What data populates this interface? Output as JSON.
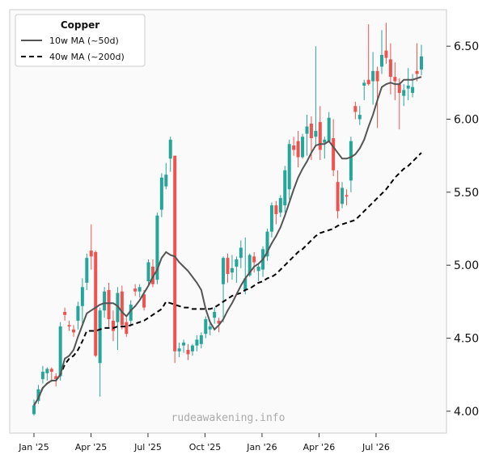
{
  "chart_data": {
    "type": "candlestick",
    "title": "",
    "xlabel": "",
    "ylabel": "",
    "ylim": [
      3.85,
      6.75
    ],
    "y_ticks": [
      4.0,
      4.5,
      5.0,
      5.5,
      6.0,
      6.5
    ],
    "y_tick_labels": [
      "4.00",
      "4.50",
      "5.00",
      "5.50",
      "6.00",
      "6.50"
    ],
    "x_tick_labels": [
      "Jan '25",
      "Apr '25",
      "Jul '25",
      "Oct '25",
      "Jan '26",
      "Apr '26",
      "Jul '26"
    ],
    "y_axis_side": "right",
    "grid": false,
    "legend": {
      "title": "Copper",
      "placement": "top-left",
      "entries": [
        "10w MA (~50d)",
        "40w MA (~200d)"
      ]
    },
    "watermark": "rudeawakening.info",
    "colors": {
      "up": "#26a69a",
      "down": "#ef5350",
      "ma10": "#555555",
      "ma40": "#000000",
      "background": "#fafafa",
      "frame": "#cccccc"
    },
    "candles": [
      [
        3.98,
        4.08,
        3.97,
        4.04
      ],
      [
        4.07,
        4.18,
        4.05,
        4.15
      ],
      [
        4.22,
        4.31,
        4.19,
        4.27
      ],
      [
        4.26,
        4.3,
        4.21,
        4.29
      ],
      [
        4.29,
        4.3,
        4.2,
        4.27
      ],
      [
        4.24,
        4.26,
        4.17,
        4.22
      ],
      [
        4.24,
        4.61,
        4.21,
        4.58
      ],
      [
        4.68,
        4.71,
        4.62,
        4.66
      ],
      [
        4.59,
        4.62,
        4.55,
        4.58
      ],
      [
        4.56,
        4.59,
        4.51,
        4.54
      ],
      [
        4.62,
        4.75,
        4.56,
        4.72
      ],
      [
        4.72,
        4.91,
        4.59,
        4.85
      ],
      [
        4.88,
        5.08,
        4.83,
        5.05
      ],
      [
        5.1,
        5.28,
        4.97,
        5.06
      ],
      [
        5.09,
        5.1,
        4.37,
        4.38
      ],
      [
        4.33,
        4.71,
        4.1,
        4.69
      ],
      [
        4.69,
        4.85,
        4.64,
        4.82
      ],
      [
        4.83,
        4.88,
        4.57,
        4.63
      ],
      [
        4.62,
        4.69,
        4.48,
        4.55
      ],
      [
        4.61,
        4.85,
        4.42,
        4.81
      ],
      [
        4.82,
        4.86,
        4.56,
        4.59
      ],
      [
        4.61,
        4.64,
        4.51,
        4.53
      ],
      [
        4.62,
        4.76,
        4.58,
        4.73
      ],
      [
        4.84,
        4.87,
        4.79,
        4.82
      ],
      [
        4.82,
        4.87,
        4.78,
        4.85
      ],
      [
        4.8,
        4.83,
        4.69,
        4.71
      ],
      [
        4.89,
        5.04,
        4.86,
        5.02
      ],
      [
        4.99,
        5.04,
        4.85,
        4.87
      ],
      [
        4.9,
        5.36,
        4.87,
        5.34
      ],
      [
        5.38,
        5.63,
        5.33,
        5.6
      ],
      [
        5.54,
        5.7,
        5.52,
        5.62
      ],
      [
        5.73,
        5.88,
        5.64,
        5.86
      ],
      [
        5.75,
        5.75,
        4.33,
        4.41
      ],
      [
        4.41,
        4.47,
        4.37,
        4.43
      ],
      [
        4.45,
        4.49,
        4.4,
        4.47
      ],
      [
        4.42,
        4.46,
        4.35,
        4.39
      ],
      [
        4.41,
        4.46,
        4.38,
        4.45
      ],
      [
        4.45,
        4.52,
        4.41,
        4.49
      ],
      [
        4.46,
        4.54,
        4.43,
        4.52
      ],
      [
        4.53,
        4.65,
        4.5,
        4.63
      ],
      [
        4.56,
        4.6,
        4.52,
        4.58
      ],
      [
        4.64,
        4.71,
        4.6,
        4.68
      ],
      [
        4.62,
        4.64,
        4.54,
        4.6
      ],
      [
        4.87,
        5.06,
        4.61,
        5.05
      ],
      [
        5.05,
        5.08,
        4.88,
        4.94
      ],
      [
        4.95,
        5.07,
        4.9,
        4.98
      ],
      [
        4.99,
        5.06,
        4.88,
        5.04
      ],
      [
        5.05,
        5.17,
        4.98,
        5.12
      ],
      [
        4.83,
        5.19,
        4.8,
        4.91
      ],
      [
        4.93,
        5.08,
        4.92,
        5.07
      ],
      [
        5.06,
        5.09,
        4.95,
        5.02
      ],
      [
        4.96,
        5.01,
        4.89,
        4.99
      ],
      [
        4.97,
        5.13,
        4.92,
        5.11
      ],
      [
        5.06,
        5.25,
        5.03,
        5.23
      ],
      [
        5.23,
        5.43,
        5.19,
        5.41
      ],
      [
        5.41,
        5.44,
        5.28,
        5.35
      ],
      [
        5.36,
        5.48,
        5.33,
        5.46
      ],
      [
        5.41,
        5.68,
        5.36,
        5.65
      ],
      [
        5.52,
        5.86,
        5.45,
        5.83
      ],
      [
        5.82,
        5.88,
        5.75,
        5.79
      ],
      [
        5.85,
        5.92,
        5.67,
        5.74
      ],
      [
        5.74,
        5.9,
        5.73,
        5.88
      ],
      [
        5.9,
        6.03,
        5.75,
        5.95
      ],
      [
        5.97,
        6.02,
        5.72,
        5.87
      ],
      [
        5.88,
        6.5,
        5.81,
        5.92
      ],
      [
        5.98,
        6.09,
        5.72,
        5.79
      ],
      [
        5.84,
        5.88,
        5.73,
        5.86
      ],
      [
        5.85,
        6.05,
        5.84,
        6.01
      ],
      [
        5.87,
        6.0,
        5.61,
        5.65
      ],
      [
        5.57,
        5.65,
        5.32,
        5.37
      ],
      [
        5.42,
        5.57,
        5.39,
        5.53
      ],
      [
        5.48,
        5.52,
        5.41,
        5.47
      ],
      [
        5.58,
        5.88,
        5.5,
        5.85
      ],
      [
        6.09,
        6.12,
        6.0,
        6.05
      ],
      [
        6.0,
        6.09,
        5.96,
        6.03
      ],
      [
        6.23,
        6.27,
        6.13,
        6.25
      ],
      [
        6.27,
        6.65,
        6.23,
        6.24
      ],
      [
        6.26,
        6.46,
        6.1,
        6.33
      ],
      [
        6.33,
        6.36,
        5.94,
        6.26
      ],
      [
        6.36,
        6.61,
        6.31,
        6.44
      ],
      [
        6.47,
        6.66,
        6.38,
        6.42
      ],
      [
        6.41,
        6.52,
        6.17,
        6.29
      ],
      [
        6.29,
        6.39,
        6.13,
        6.26
      ],
      [
        6.24,
        6.28,
        5.93,
        6.18
      ],
      [
        6.16,
        6.24,
        6.09,
        6.2
      ],
      [
        6.21,
        6.35,
        6.13,
        6.23
      ],
      [
        6.18,
        6.31,
        6.15,
        6.22
      ],
      [
        6.33,
        6.52,
        6.26,
        6.31
      ],
      [
        6.34,
        6.51,
        6.3,
        6.43
      ]
    ],
    "series": [
      {
        "name": "10w MA (~50d)",
        "x": [
          0,
          1,
          2,
          3,
          4,
          5,
          6,
          7,
          8,
          9,
          10,
          11,
          12,
          13,
          14,
          15,
          16,
          17,
          18,
          19,
          20,
          21,
          22,
          23,
          24,
          25,
          26,
          27,
          28,
          29,
          30,
          31,
          32,
          33,
          34,
          35,
          36,
          37,
          38,
          39,
          40,
          41,
          42,
          43,
          44,
          45,
          46,
          47,
          48,
          49,
          50,
          51,
          52,
          53,
          54,
          55,
          56,
          57,
          58,
          59,
          60,
          61,
          62,
          63,
          64,
          65,
          66,
          67,
          68,
          69,
          70,
          71,
          72,
          73,
          74,
          75,
          76,
          77,
          78,
          79,
          80,
          81,
          82,
          83,
          84,
          85,
          86,
          87,
          88
        ],
        "values": [
          4.04,
          4.09,
          4.16,
          4.19,
          4.21,
          4.21,
          4.25,
          4.36,
          4.38,
          4.42,
          4.51,
          4.59,
          4.67,
          4.69,
          4.71,
          4.73,
          4.74,
          4.74,
          4.74,
          4.72,
          4.68,
          4.65,
          4.69,
          4.72,
          4.76,
          4.81,
          4.86,
          4.92,
          4.97,
          5.05,
          5.09,
          5.07,
          5.06,
          5.02,
          4.99,
          4.96,
          4.92,
          4.88,
          4.83,
          4.7,
          4.61,
          4.56,
          4.59,
          4.63,
          4.69,
          4.74,
          4.8,
          4.86,
          4.91,
          4.95,
          4.99,
          5.01,
          5.04,
          5.09,
          5.15,
          5.2,
          5.26,
          5.34,
          5.43,
          5.52,
          5.6,
          5.66,
          5.71,
          5.77,
          5.82,
          5.83,
          5.83,
          5.85,
          5.81,
          5.77,
          5.73,
          5.73,
          5.74,
          5.76,
          5.8,
          5.86,
          5.95,
          6.03,
          6.13,
          6.22,
          6.24,
          6.25,
          6.24,
          6.24,
          6.27,
          6.27,
          6.27,
          6.28,
          6.29
        ]
      },
      {
        "name": "40w MA (~200d)",
        "x": [
          0,
          1,
          2,
          3,
          4,
          5,
          6,
          7,
          8,
          9,
          10,
          11,
          12,
          13,
          14,
          15,
          16,
          17,
          18,
          19,
          20,
          21,
          22,
          23,
          24,
          25,
          26,
          27,
          28,
          29,
          30,
          31,
          32,
          33,
          34,
          35,
          36,
          37,
          38,
          39,
          40,
          41,
          42,
          43,
          44,
          45,
          46,
          47,
          48,
          49,
          50,
          51,
          52,
          53,
          54,
          55,
          56,
          57,
          58,
          59,
          60,
          61,
          62,
          63,
          64,
          65,
          66,
          67,
          68,
          69,
          70,
          71,
          72,
          73,
          74,
          75,
          76,
          77,
          78,
          79,
          80,
          81,
          82,
          83,
          84,
          85,
          86,
          87,
          88
        ],
        "values": [
          4.04,
          4.09,
          4.16,
          4.19,
          4.21,
          4.21,
          4.25,
          4.32,
          4.36,
          4.38,
          4.42,
          4.48,
          4.55,
          4.55,
          4.55,
          4.56,
          4.57,
          4.57,
          4.57,
          4.58,
          4.58,
          4.58,
          4.59,
          4.6,
          4.61,
          4.62,
          4.64,
          4.66,
          4.68,
          4.7,
          4.75,
          4.74,
          4.73,
          4.72,
          4.71,
          4.71,
          4.7,
          4.7,
          4.7,
          4.7,
          4.7,
          4.71,
          4.73,
          4.75,
          4.77,
          4.79,
          4.8,
          4.81,
          4.83,
          4.84,
          4.86,
          4.88,
          4.89,
          4.91,
          4.92,
          4.94,
          4.97,
          5.0,
          5.03,
          5.06,
          5.09,
          5.11,
          5.14,
          5.17,
          5.2,
          5.22,
          5.23,
          5.24,
          5.25,
          5.27,
          5.28,
          5.29,
          5.3,
          5.31,
          5.34,
          5.37,
          5.4,
          5.43,
          5.46,
          5.49,
          5.52,
          5.56,
          5.6,
          5.63,
          5.66,
          5.68,
          5.71,
          5.74,
          5.77
        ]
      }
    ]
  }
}
